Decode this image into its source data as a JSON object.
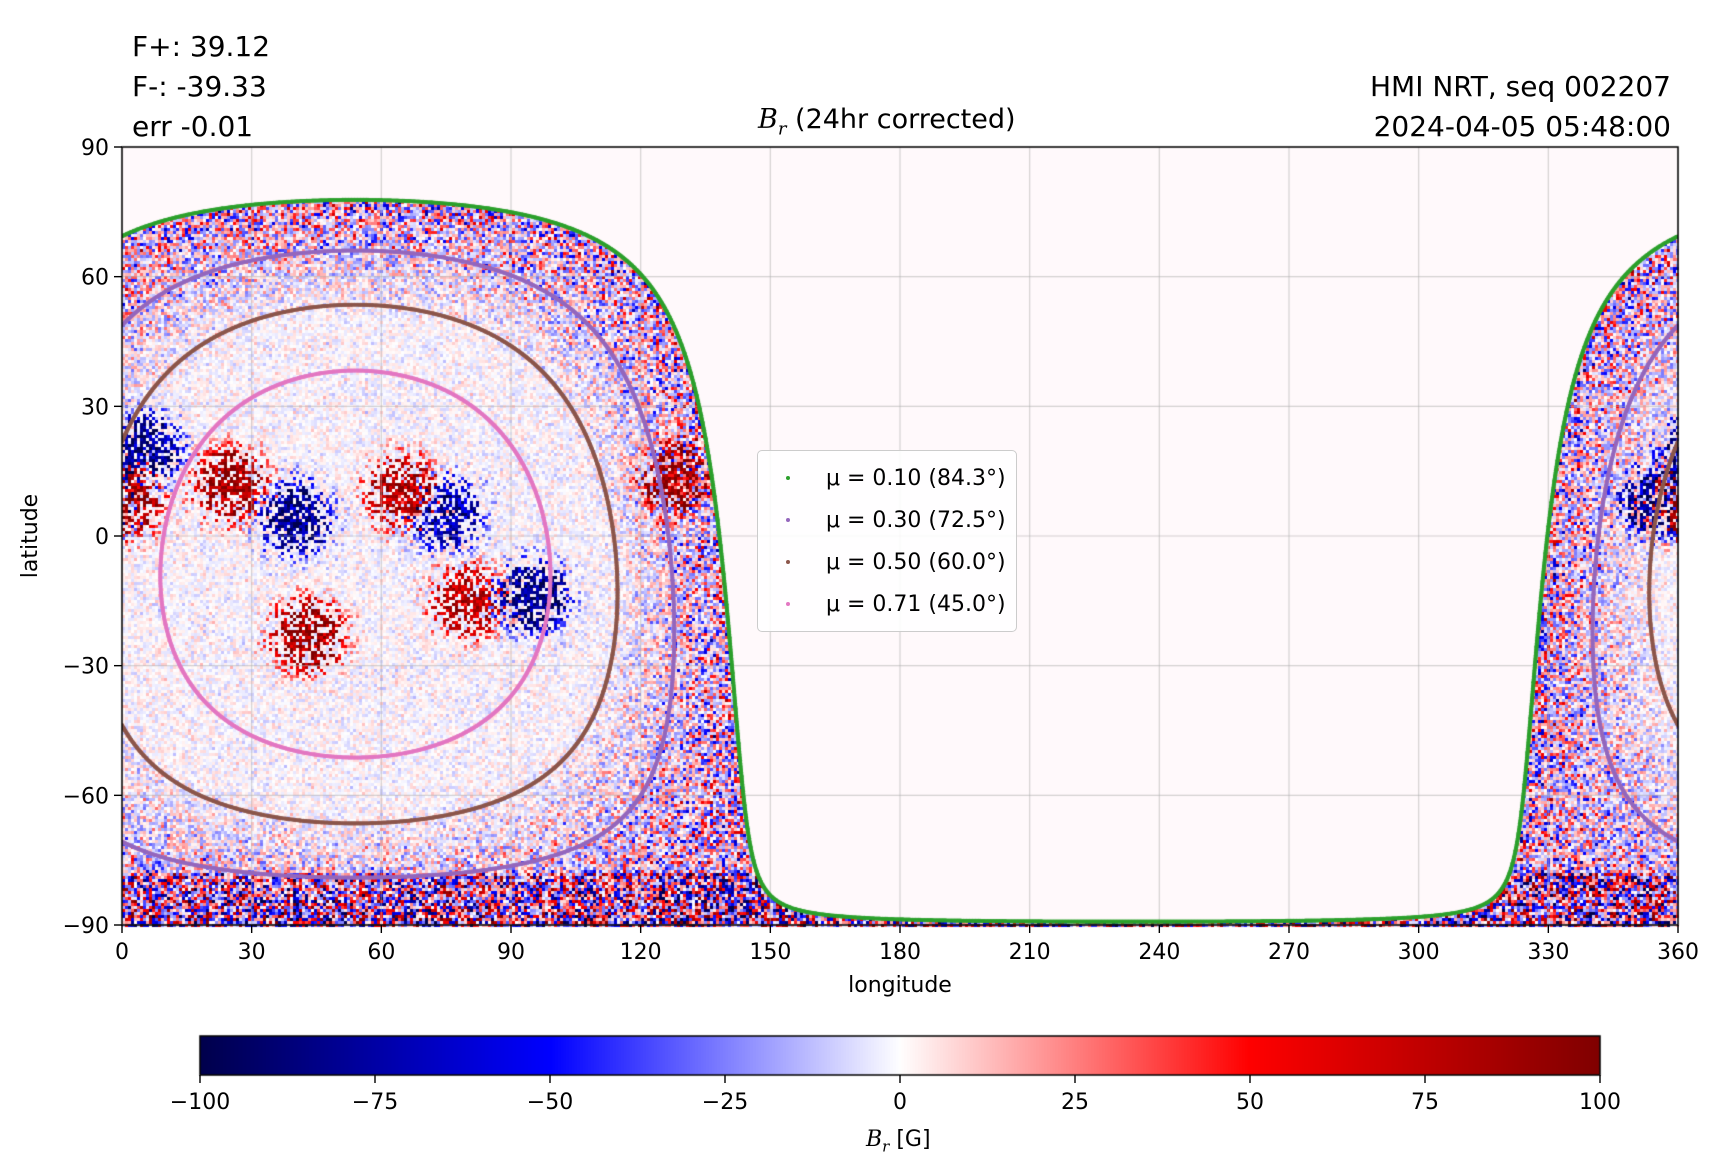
{
  "header": {
    "flux_pos": "F+: 39.12",
    "flux_neg": "F-: -39.33",
    "err": "err -0.01",
    "source": "HMI NRT, seq 002207",
    "timestamp": "2024-04-05 05:48:00"
  },
  "chart_data": {
    "type": "heatmap",
    "title_symbol": "B",
    "title_sub": "r",
    "title_rest": " (24hr corrected)",
    "xlabel": "longitude",
    "ylabel": "latitude",
    "xlim": [
      0,
      360
    ],
    "ylim": [
      -90,
      90
    ],
    "xticks": [
      0,
      30,
      60,
      90,
      120,
      150,
      180,
      210,
      240,
      270,
      300,
      330,
      360
    ],
    "yticks": [
      90,
      60,
      30,
      0,
      -30,
      -60,
      -90
    ],
    "ytick_labels": [
      "90",
      "60",
      "30",
      "0",
      "−30",
      "−60",
      "−90"
    ],
    "grid": true,
    "disk_center_longitude": 54,
    "disk_center_latitude": -6.5,
    "contours": [
      {
        "name": "μ = 0.10 (84.3°)",
        "mu": 0.1,
        "angle_deg": 84.3,
        "color": "#2ca02c"
      },
      {
        "name": "μ = 0.30 (72.5°)",
        "mu": 0.3,
        "angle_deg": 72.5,
        "color": "#9467bd"
      },
      {
        "name": "μ = 0.50 (60.0°)",
        "mu": 0.5,
        "angle_deg": 60.0,
        "color": "#8c564b"
      },
      {
        "name": "μ = 0.71 (45.0°)",
        "mu": 0.71,
        "angle_deg": 45.0,
        "color": "#e377c2"
      }
    ],
    "legend_position": "center",
    "active_regions": [
      {
        "lon": 25,
        "lat": 12,
        "polarity": "positive",
        "strength": 95
      },
      {
        "lon": 40,
        "lat": 4,
        "polarity": "negative",
        "strength": 90
      },
      {
        "lon": 65,
        "lat": 10,
        "polarity": "positive",
        "strength": 90
      },
      {
        "lon": 75,
        "lat": 5,
        "polarity": "negative",
        "strength": 85
      },
      {
        "lon": 43,
        "lat": -23,
        "polarity": "positive",
        "strength": 95
      },
      {
        "lon": 80,
        "lat": -15,
        "polarity": "positive",
        "strength": 85
      },
      {
        "lon": 95,
        "lat": -14,
        "polarity": "negative",
        "strength": 95
      },
      {
        "lon": 5,
        "lat": 20,
        "polarity": "negative",
        "strength": 90
      },
      {
        "lon": 128,
        "lat": 13,
        "polarity": "positive",
        "strength": 100
      },
      {
        "lon": 1,
        "lat": 8,
        "polarity": "positive",
        "strength": 100
      },
      {
        "lon": 355,
        "lat": 8,
        "polarity": "negative",
        "strength": 95
      }
    ],
    "colorbar": {
      "min": -100,
      "max": 100,
      "ticks": [
        -100,
        -75,
        -50,
        -25,
        0,
        25,
        50,
        75,
        100
      ],
      "tick_labels": [
        "−100",
        "−75",
        "−50",
        "−25",
        "0",
        "25",
        "50",
        "75",
        "100"
      ],
      "label_symbol": "B",
      "label_sub": "r",
      "label_unit": " [G]",
      "colormap": "seismic",
      "colors": [
        "#00004c",
        "#0000ff",
        "#ffffff",
        "#ff0000",
        "#800000"
      ]
    }
  }
}
